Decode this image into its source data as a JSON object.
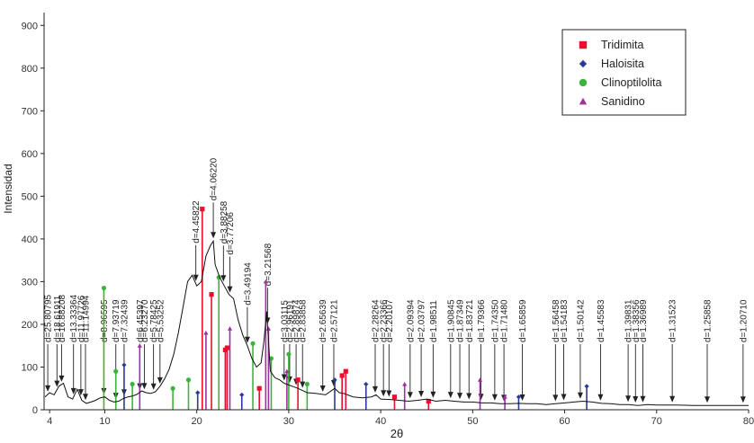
{
  "chart_data": {
    "type": "line",
    "title": "",
    "xlabel": "2θ",
    "ylabel": "Intensidad",
    "xlim": [
      3.4,
      80
    ],
    "ylim": [
      0,
      930
    ],
    "xticks": [
      4,
      10,
      20,
      30,
      40,
      50,
      60,
      70,
      80
    ],
    "yticks": [
      0,
      100,
      200,
      300,
      400,
      500,
      600,
      700,
      800,
      900
    ],
    "grid": false,
    "legend_position": "top-right",
    "legend": [
      {
        "name": "Tridimita",
        "marker": "square",
        "color": "#e8112d"
      },
      {
        "name": "Haloisita",
        "marker": "diamond",
        "color": "#2b3a9b"
      },
      {
        "name": "Clinoptilolita",
        "marker": "circle",
        "color": "#3cb43c"
      },
      {
        "name": "Sanidino",
        "marker": "triangle",
        "color": "#a0309f"
      }
    ],
    "pattern": {
      "name": "XRD pattern",
      "color": "#111111",
      "x": [
        3.5,
        4.0,
        4.5,
        5.0,
        5.5,
        6.0,
        6.5,
        7.0,
        7.5,
        8.0,
        8.5,
        9.0,
        9.5,
        10.0,
        10.5,
        11.0,
        11.5,
        12.0,
        12.5,
        13.0,
        13.5,
        14.0,
        14.5,
        15.0,
        15.5,
        16.0,
        16.5,
        17.0,
        17.5,
        18.0,
        18.5,
        19.0,
        19.5,
        20.0,
        20.5,
        21.0,
        21.5,
        21.8,
        22.0,
        22.5,
        23.0,
        23.5,
        24.0,
        24.5,
        25.0,
        25.5,
        26.0,
        26.5,
        27.0,
        27.3,
        27.6,
        28.0,
        28.5,
        29.0,
        29.5,
        30.0,
        30.5,
        31.0,
        31.5,
        32.0,
        33.0,
        34.0,
        35.0,
        35.5,
        36.0,
        37.0,
        38.0,
        39.0,
        39.5,
        40.0,
        41.0,
        42.0,
        43.0,
        44.0,
        45.0,
        46.0,
        47.0,
        48.0,
        49.0,
        50.0,
        51.0,
        52.0,
        53.0,
        54.0,
        55.0,
        56.0,
        57.0,
        58.0,
        59.0,
        60.0,
        61.0,
        62.0,
        63.0,
        64.0,
        65.0,
        66.0,
        67.0,
        68.0,
        69.0,
        70.0,
        72.0,
        74.0,
        76.0,
        78.0,
        80.0
      ],
      "y": [
        30,
        40,
        35,
        55,
        62,
        30,
        25,
        48,
        22,
        15,
        18,
        22,
        28,
        30,
        22,
        18,
        20,
        26,
        30,
        32,
        36,
        44,
        40,
        38,
        42,
        55,
        72,
        95,
        130,
        180,
        240,
        300,
        315,
        290,
        300,
        360,
        385,
        395,
        340,
        310,
        290,
        270,
        260,
        210,
        175,
        150,
        120,
        100,
        110,
        160,
        230,
        90,
        75,
        70,
        62,
        58,
        54,
        50,
        45,
        40,
        38,
        35,
        50,
        40,
        38,
        30,
        28,
        30,
        35,
        25,
        24,
        22,
        20,
        22,
        25,
        20,
        22,
        20,
        18,
        18,
        16,
        16,
        14,
        14,
        15,
        14,
        14,
        12,
        14,
        16,
        18,
        20,
        18,
        15,
        14,
        12,
        12,
        10,
        12,
        11,
        11,
        10,
        10,
        10,
        10
      ]
    },
    "reference_peaks": [
      {
        "phase": "Tridimita",
        "x": [
          20.6,
          21.6,
          23.1,
          23.3,
          26.8,
          31.0,
          35.8,
          36.2,
          41.5,
          45.2
        ],
        "y": [
          470,
          270,
          140,
          145,
          50,
          70,
          80,
          90,
          30,
          20
        ]
      },
      {
        "phase": "Haloisita",
        "x": [
          12.1,
          20.1,
          24.9,
          35.0,
          38.4,
          55.0,
          62.4
        ],
        "y": [
          105,
          40,
          35,
          70,
          60,
          30,
          55
        ]
      },
      {
        "phase": "Clinoptilolita",
        "x": [
          9.9,
          11.2,
          13.0,
          17.4,
          19.1,
          22.4,
          26.1,
          28.1,
          30.0,
          32.0
        ],
        "y": [
          285,
          90,
          60,
          50,
          70,
          310,
          155,
          120,
          130,
          60
        ]
      },
      {
        "phase": "Sanidino",
        "x": [
          13.8,
          21.0,
          23.6,
          27.5,
          27.8,
          29.8,
          42.6,
          50.8,
          53.5
        ],
        "y": [
          150,
          180,
          190,
          300,
          190,
          90,
          60,
          70,
          30
        ]
      }
    ],
    "annotations": [
      {
        "label": "d=25.80795",
        "x": 3.8
      },
      {
        "label": "d=18.61911",
        "x": 4.8
      },
      {
        "label": "d=16.88208",
        "x": 5.3
      },
      {
        "label": "d=13.33364",
        "x": 6.6
      },
      {
        "label": "d=11.97726",
        "x": 7.4
      },
      {
        "label": "d=11.14994",
        "x": 7.9
      },
      {
        "label": "d=8.96595",
        "x": 9.9
      },
      {
        "label": "d=7.93719",
        "x": 11.2
      },
      {
        "label": "d=7.32439",
        "x": 12.1
      },
      {
        "label": "d=6.45397",
        "x": 13.8
      },
      {
        "label": "d=6.23270",
        "x": 14.3
      },
      {
        "label": "d=5.78425",
        "x": 15.3
      },
      {
        "label": "d=5.53252",
        "x": 16.0
      },
      {
        "label": "d=4.45822",
        "x": 19.9
      },
      {
        "label": "d=4.06220",
        "x": 21.8
      },
      {
        "label": "d=3.88258",
        "x": 22.9
      },
      {
        "label": "d=3.77206",
        "x": 23.6
      },
      {
        "label": "d=3.49194",
        "x": 25.5
      },
      {
        "label": "d=3.21568",
        "x": 27.7
      },
      {
        "label": "d=3.03115",
        "x": 29.5
      },
      {
        "label": "d=2.96191",
        "x": 30.1
      },
      {
        "label": "d=2.89874",
        "x": 30.8
      },
      {
        "label": "d=2.83858",
        "x": 31.5
      },
      {
        "label": "d=2.65639",
        "x": 33.7
      },
      {
        "label": "d=2.57121",
        "x": 34.9
      },
      {
        "label": "d=2.28264",
        "x": 39.4
      },
      {
        "label": "d=2.23366",
        "x": 40.3
      },
      {
        "label": "d=2.20107",
        "x": 40.9
      },
      {
        "label": "d=2.09394",
        "x": 43.2
      },
      {
        "label": "d=2.03797",
        "x": 44.4
      },
      {
        "label": "d=1.98511",
        "x": 45.7
      },
      {
        "label": "d=1.90845",
        "x": 47.6
      },
      {
        "label": "d=1.87349",
        "x": 48.6
      },
      {
        "label": "d=1.83721",
        "x": 49.6
      },
      {
        "label": "d=1.79366",
        "x": 50.9
      },
      {
        "label": "d=1.74350",
        "x": 52.4
      },
      {
        "label": "d=1.71480",
        "x": 53.4
      },
      {
        "label": "d=1.65859",
        "x": 55.4
      },
      {
        "label": "d=1.56458",
        "x": 59.0
      },
      {
        "label": "d=1.54183",
        "x": 59.9
      },
      {
        "label": "d=1.50142",
        "x": 61.7
      },
      {
        "label": "d=1.45583",
        "x": 63.9
      },
      {
        "label": "d=1.39831",
        "x": 66.9
      },
      {
        "label": "d=1.38356",
        "x": 67.7
      },
      {
        "label": "d=1.36989",
        "x": 68.5
      },
      {
        "label": "d=1.31523",
        "x": 71.7
      },
      {
        "label": "d=1.25858",
        "x": 75.5
      },
      {
        "label": "d=1.20710",
        "x": 79.4
      }
    ]
  }
}
